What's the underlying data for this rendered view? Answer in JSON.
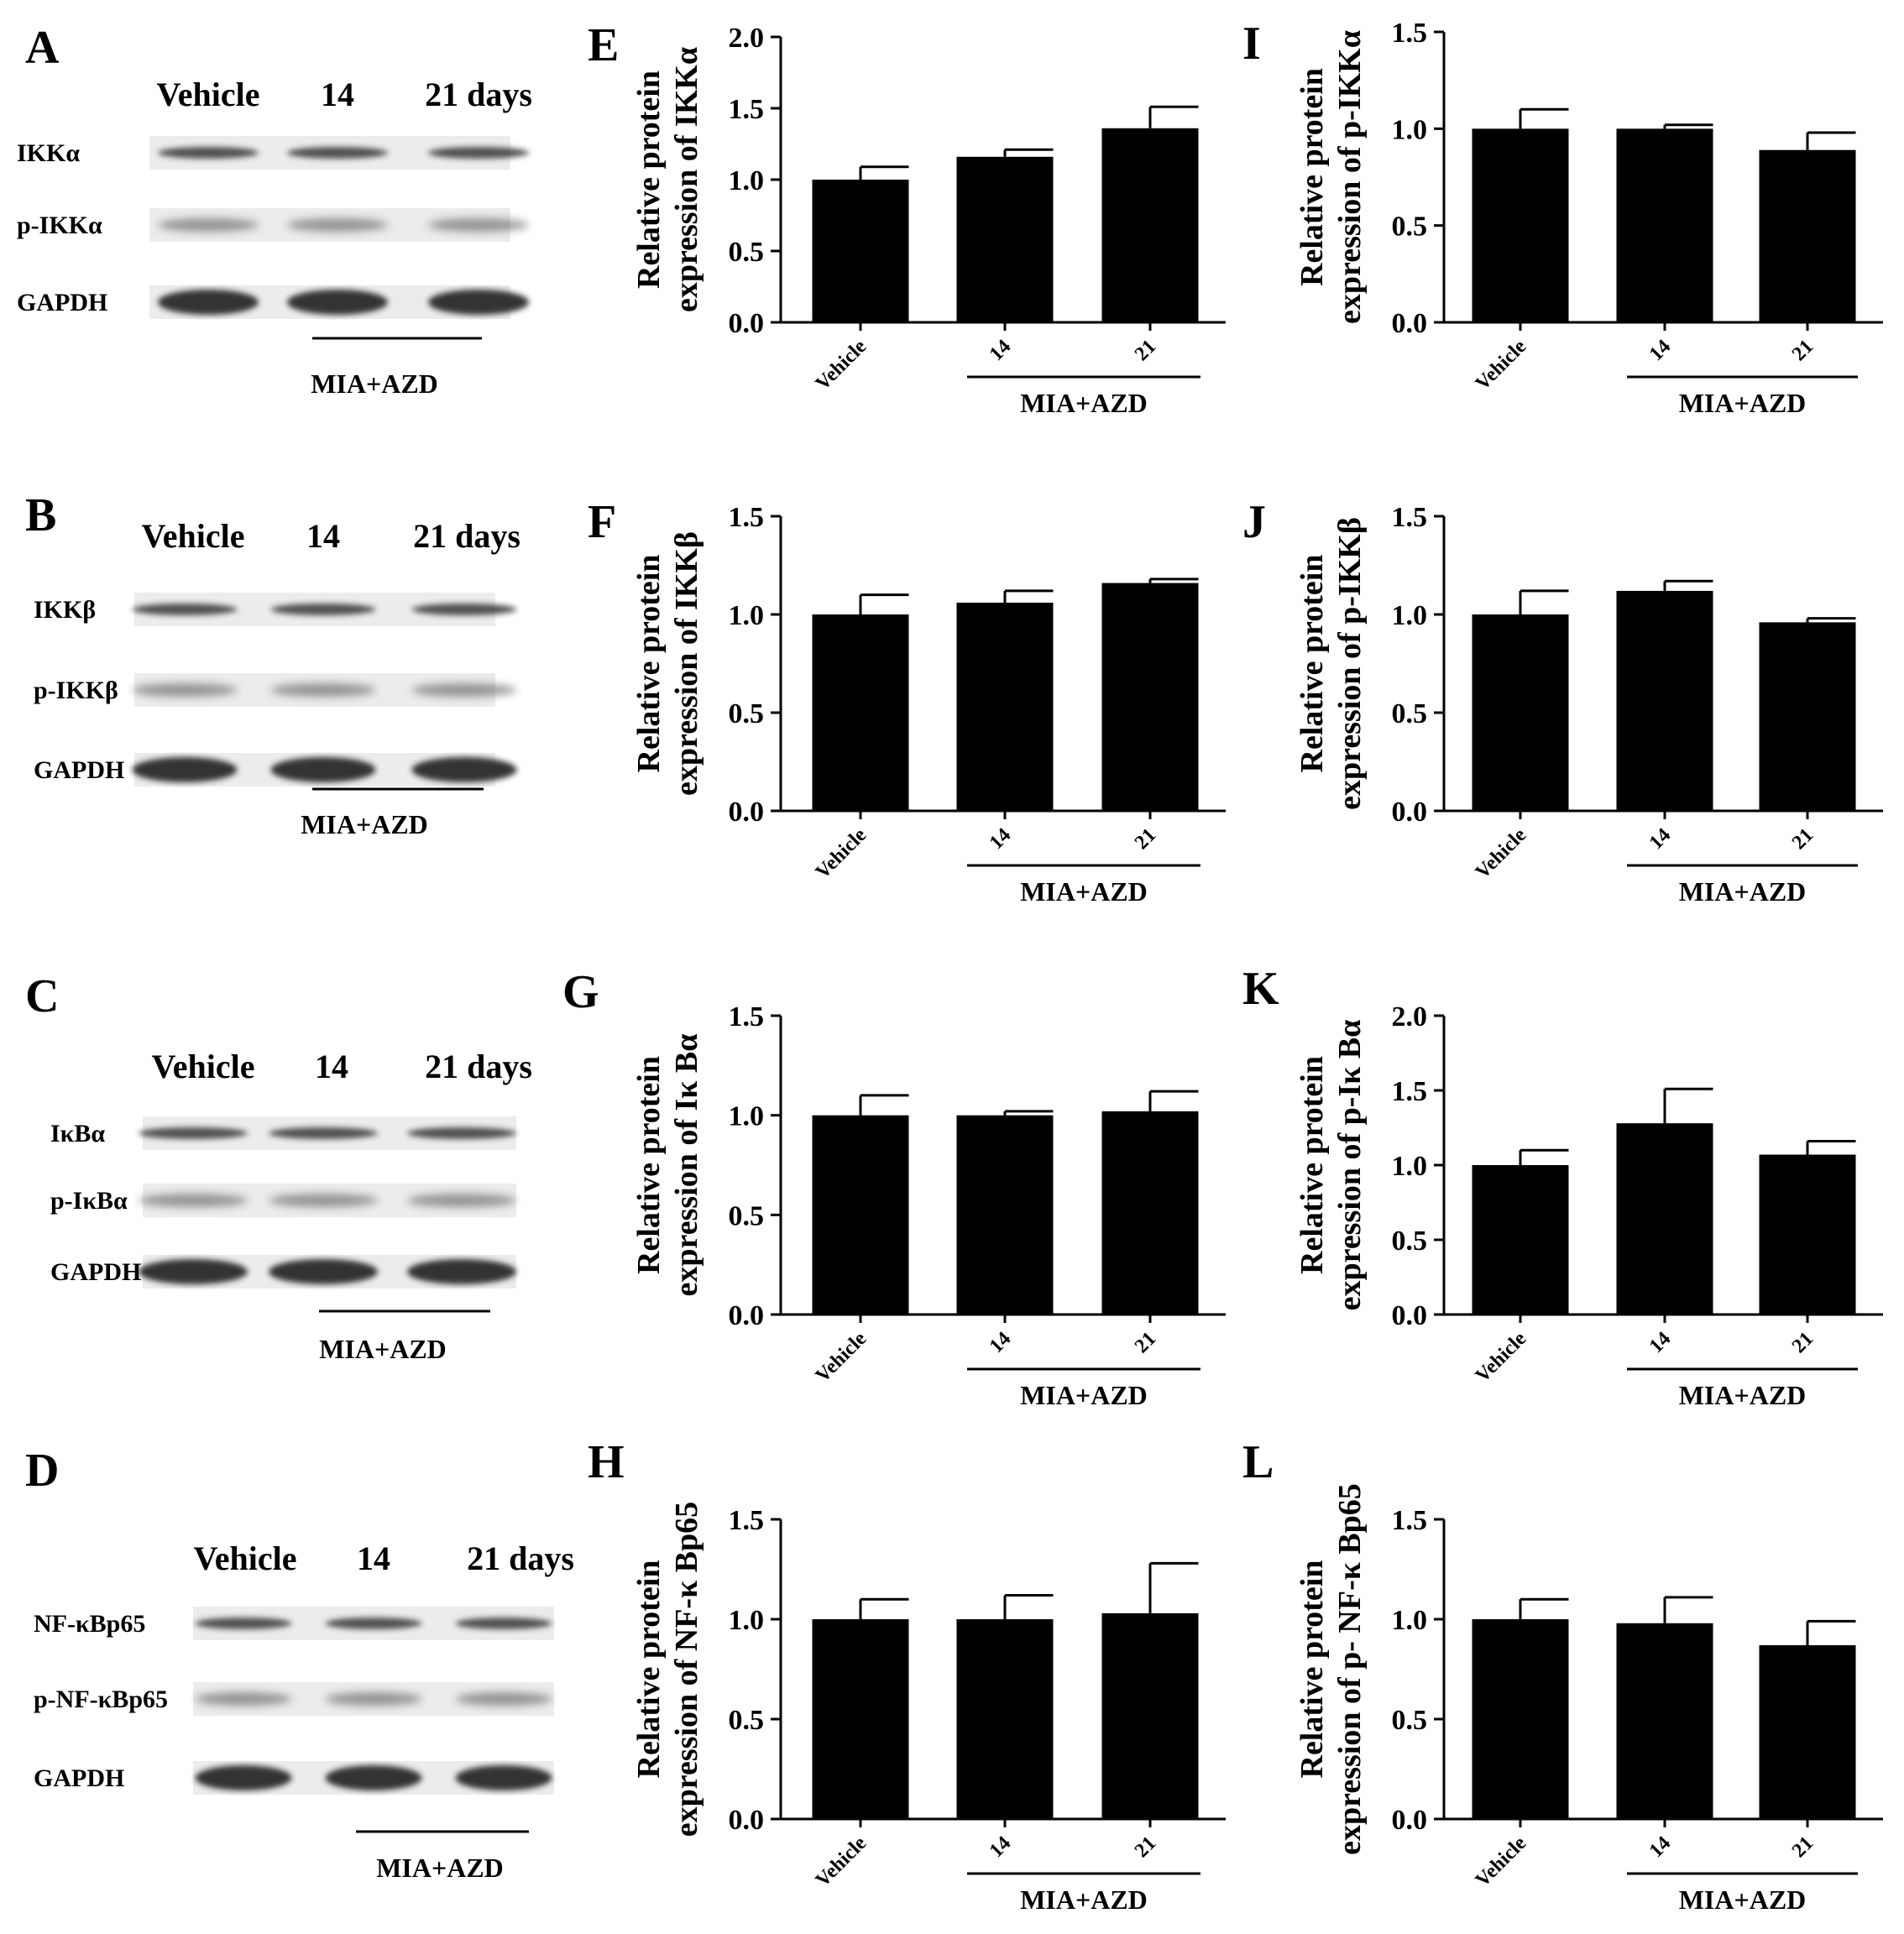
{
  "blots": [
    {
      "letter": "A",
      "lanes": [
        "Vehicle",
        "14",
        "21 days"
      ],
      "rows": [
        "IKKα",
        "p-IKKα",
        "GAPDH"
      ],
      "group_label": "MIA+AZD"
    },
    {
      "letter": "B",
      "lanes": [
        "Vehicle",
        "14",
        "21 days"
      ],
      "rows": [
        "IKKβ",
        "p-IKKβ",
        "GAPDH"
      ],
      "group_label": "MIA+AZD"
    },
    {
      "letter": "C",
      "lanes": [
        "Vehicle",
        "14",
        "21 days"
      ],
      "rows": [
        "IκBα",
        "p-IκBα",
        "GAPDH"
      ],
      "group_label": "MIA+AZD"
    },
    {
      "letter": "D",
      "lanes": [
        "Vehicle",
        "14",
        "21 days"
      ],
      "rows": [
        "NF-κBp65",
        "p-NF-κBp65",
        "GAPDH"
      ],
      "group_label": "MIA+AZD"
    }
  ],
  "chart_data": [
    {
      "panel": "E",
      "type": "bar",
      "categories": [
        "Vehicle",
        "14",
        "21"
      ],
      "values": [
        1.0,
        1.16,
        1.36
      ],
      "errors": [
        0.09,
        0.05,
        0.15
      ],
      "ylabel": [
        "Relative protein",
        "expression of IKKα"
      ],
      "ylim": [
        0,
        2.0
      ],
      "yticks": [
        "0.0",
        "0.5",
        "1.0",
        "1.5",
        "2.0"
      ],
      "group_label": "MIA+AZD"
    },
    {
      "panel": "F",
      "type": "bar",
      "categories": [
        "Vehicle",
        "14",
        "21"
      ],
      "values": [
        1.0,
        1.06,
        1.16
      ],
      "errors": [
        0.1,
        0.06,
        0.02
      ],
      "ylabel": [
        "Relative protein",
        "expression of IKKβ"
      ],
      "ylim": [
        0,
        1.5
      ],
      "yticks": [
        "0.0",
        "0.5",
        "1.0",
        "1.5"
      ],
      "group_label": "MIA+AZD"
    },
    {
      "panel": "G",
      "type": "bar",
      "categories": [
        "Vehicle",
        "14",
        "21"
      ],
      "values": [
        1.0,
        1.0,
        1.02
      ],
      "errors": [
        0.1,
        0.02,
        0.1
      ],
      "ylabel": [
        "Relative protein",
        "expression of Iκ Bα"
      ],
      "ylim": [
        0,
        1.5
      ],
      "yticks": [
        "0.0",
        "0.5",
        "1.0",
        "1.5"
      ],
      "group_label": "MIA+AZD"
    },
    {
      "panel": "H",
      "type": "bar",
      "categories": [
        "Vehicle",
        "14",
        "21"
      ],
      "values": [
        1.0,
        1.0,
        1.03
      ],
      "errors": [
        0.1,
        0.12,
        0.25
      ],
      "ylabel": [
        "Relative protein",
        "expression of  NF-κ Bp65"
      ],
      "ylim": [
        0,
        1.5
      ],
      "yticks": [
        "0.0",
        "0.5",
        "1.0",
        "1.5"
      ],
      "group_label": "MIA+AZD"
    },
    {
      "panel": "I",
      "type": "bar",
      "categories": [
        "Vehicle",
        "14",
        "21"
      ],
      "values": [
        1.0,
        1.0,
        0.89
      ],
      "errors": [
        0.1,
        0.02,
        0.09
      ],
      "ylabel": [
        "Relative protein",
        "expression of p-IKKα"
      ],
      "ylim": [
        0,
        1.5
      ],
      "yticks": [
        "0.0",
        "0.5",
        "1.0",
        "1.5"
      ],
      "group_label": "MIA+AZD"
    },
    {
      "panel": "J",
      "type": "bar",
      "categories": [
        "Vehicle",
        "14",
        "21"
      ],
      "values": [
        1.0,
        1.12,
        0.96
      ],
      "errors": [
        0.12,
        0.05,
        0.02
      ],
      "ylabel": [
        "Relative protein",
        "expression of p-IKKβ"
      ],
      "ylim": [
        0,
        1.5
      ],
      "yticks": [
        "0.0",
        "0.5",
        "1.0",
        "1.5"
      ],
      "group_label": "MIA+AZD"
    },
    {
      "panel": "K",
      "type": "bar",
      "categories": [
        "Vehicle",
        "14",
        "21"
      ],
      "values": [
        1.0,
        1.28,
        1.07
      ],
      "errors": [
        0.1,
        0.23,
        0.09
      ],
      "ylabel": [
        "Relative protein",
        "expression of p-Iκ Bα"
      ],
      "ylim": [
        0,
        2.0
      ],
      "yticks": [
        "0.0",
        "0.5",
        "1.0",
        "1.5",
        "2.0"
      ],
      "group_label": "MIA+AZD"
    },
    {
      "panel": "L",
      "type": "bar",
      "categories": [
        "Vehicle",
        "14",
        "21"
      ],
      "values": [
        1.0,
        0.98,
        0.87
      ],
      "errors": [
        0.1,
        0.13,
        0.12
      ],
      "ylabel": [
        "Relative protein",
        "expression of p- NF-κ Bp65"
      ],
      "ylim": [
        0,
        1.5
      ],
      "yticks": [
        "0.0",
        "0.5",
        "1.0",
        "1.5"
      ],
      "group_label": "MIA+AZD"
    }
  ],
  "colors": {
    "bar": "#000000",
    "band": "#2a2a2a"
  }
}
